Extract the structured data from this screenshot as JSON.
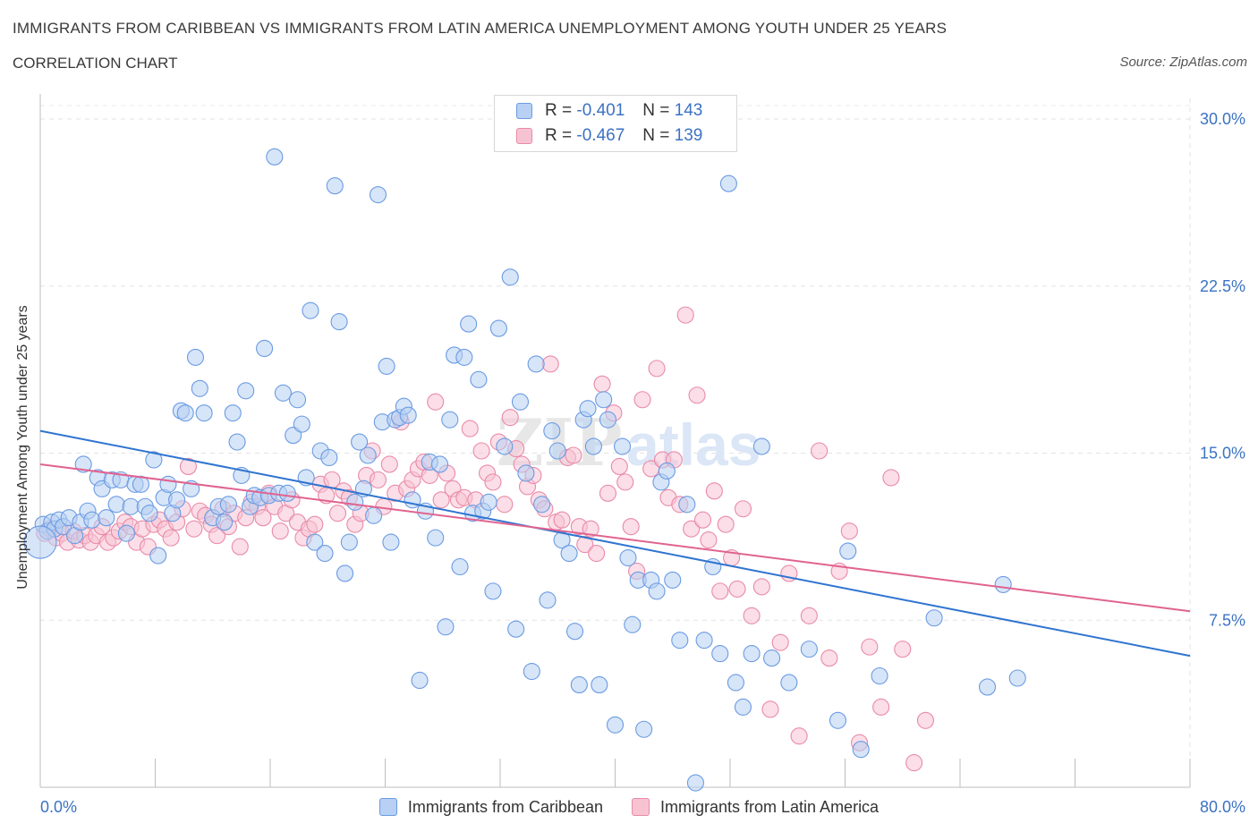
{
  "header": {
    "title": "IMMIGRANTS FROM CARIBBEAN VS IMMIGRANTS FROM LATIN AMERICA UNEMPLOYMENT AMONG YOUTH UNDER 25 YEARS",
    "subtitle": "CORRELATION CHART",
    "source": "Source: ZipAtlas.com"
  },
  "colors": {
    "blue": "#6a9be3",
    "blue_fill": "#b7d0f3",
    "blue_line": "#2f74d0",
    "pink": "#e98aa8",
    "pink_fill": "#f7c3d3",
    "pink_line": "#e06390",
    "axis_text": "#3b72c4"
  },
  "legend": {
    "r_label": "R =",
    "n_label": "N =",
    "series": [
      {
        "r": "-0.401",
        "n": "143"
      },
      {
        "r": "-0.467",
        "n": "139"
      }
    ]
  },
  "watermark": {
    "part1": "ZIP",
    "part2": "atlas"
  },
  "chart_data": {
    "type": "scatter",
    "xlabel": "",
    "ylabel": "Unemployment Among Youth under 25 years",
    "xlim": [
      0,
      80
    ],
    "ylim": [
      0,
      30
    ],
    "x_tick_labels": [
      "0.0%",
      "80.0%"
    ],
    "y_ticks": [
      7.5,
      15.0,
      22.5,
      30.0
    ],
    "y_tick_labels": [
      "7.5%",
      "15.0%",
      "22.5%",
      "30.0%"
    ],
    "grid": true,
    "legend_position": "top-center",
    "series": [
      {
        "name": "Immigrants from Caribbean",
        "trend": {
          "x": [
            0,
            80
          ],
          "y": [
            16.0,
            5.9
          ]
        },
        "points": [
          [
            0.2,
            11.8
          ],
          [
            0.5,
            11.5
          ],
          [
            0.8,
            11.9
          ],
          [
            1.0,
            11.6
          ],
          [
            1.3,
            12.0
          ],
          [
            1.6,
            11.7
          ],
          [
            2.0,
            12.1
          ],
          [
            2.4,
            11.3
          ],
          [
            2.8,
            11.9
          ],
          [
            3.0,
            14.5
          ],
          [
            3.3,
            12.4
          ],
          [
            3.6,
            12.0
          ],
          [
            4.0,
            13.9
          ],
          [
            4.3,
            13.4
          ],
          [
            4.6,
            12.1
          ],
          [
            5.0,
            13.8
          ],
          [
            5.3,
            12.7
          ],
          [
            5.6,
            13.8
          ],
          [
            6.0,
            11.4
          ],
          [
            6.3,
            12.6
          ],
          [
            6.6,
            13.6
          ],
          [
            7.0,
            13.6
          ],
          [
            7.3,
            12.6
          ],
          [
            7.6,
            12.3
          ],
          [
            7.9,
            14.7
          ],
          [
            8.2,
            10.4
          ],
          [
            8.6,
            13.0
          ],
          [
            8.9,
            13.6
          ],
          [
            9.2,
            12.3
          ],
          [
            9.5,
            12.9
          ],
          [
            9.8,
            16.9
          ],
          [
            10.1,
            16.8
          ],
          [
            10.5,
            13.4
          ],
          [
            10.8,
            19.3
          ],
          [
            11.1,
            17.9
          ],
          [
            11.4,
            16.8
          ],
          [
            12.0,
            12.1
          ],
          [
            12.4,
            12.6
          ],
          [
            12.8,
            11.9
          ],
          [
            13.1,
            12.7
          ],
          [
            13.4,
            16.8
          ],
          [
            13.7,
            15.5
          ],
          [
            14.0,
            14.0
          ],
          [
            14.3,
            17.8
          ],
          [
            14.6,
            12.6
          ],
          [
            14.9,
            13.1
          ],
          [
            15.3,
            13.0
          ],
          [
            15.6,
            19.7
          ],
          [
            15.9,
            13.1
          ],
          [
            16.3,
            28.3
          ],
          [
            16.6,
            13.2
          ],
          [
            16.9,
            17.7
          ],
          [
            17.2,
            13.2
          ],
          [
            17.6,
            15.8
          ],
          [
            17.9,
            17.4
          ],
          [
            18.2,
            16.3
          ],
          [
            18.5,
            13.9
          ],
          [
            18.8,
            21.4
          ],
          [
            19.1,
            11.0
          ],
          [
            19.5,
            15.1
          ],
          [
            19.8,
            10.5
          ],
          [
            20.1,
            14.8
          ],
          [
            20.5,
            27.0
          ],
          [
            20.8,
            20.9
          ],
          [
            21.2,
            9.6
          ],
          [
            21.5,
            11.0
          ],
          [
            21.9,
            12.8
          ],
          [
            22.2,
            15.5
          ],
          [
            22.5,
            13.4
          ],
          [
            22.8,
            14.9
          ],
          [
            23.2,
            12.2
          ],
          [
            23.5,
            26.6
          ],
          [
            23.8,
            16.4
          ],
          [
            24.1,
            18.9
          ],
          [
            24.4,
            11.0
          ],
          [
            24.7,
            16.5
          ],
          [
            25.0,
            16.6
          ],
          [
            25.3,
            17.1
          ],
          [
            25.6,
            16.7
          ],
          [
            25.9,
            12.9
          ],
          [
            26.4,
            4.8
          ],
          [
            26.8,
            12.4
          ],
          [
            27.1,
            14.6
          ],
          [
            27.5,
            11.2
          ],
          [
            27.8,
            14.5
          ],
          [
            28.2,
            7.2
          ],
          [
            28.5,
            16.5
          ],
          [
            28.8,
            19.4
          ],
          [
            29.2,
            9.9
          ],
          [
            29.5,
            19.3
          ],
          [
            29.8,
            20.8
          ],
          [
            30.1,
            12.3
          ],
          [
            30.5,
            18.3
          ],
          [
            30.8,
            12.4
          ],
          [
            31.2,
            12.8
          ],
          [
            31.5,
            8.8
          ],
          [
            31.9,
            20.6
          ],
          [
            32.3,
            15.3
          ],
          [
            32.7,
            22.9
          ],
          [
            33.1,
            7.1
          ],
          [
            33.4,
            17.3
          ],
          [
            33.8,
            14.1
          ],
          [
            34.2,
            5.2
          ],
          [
            34.5,
            19.0
          ],
          [
            34.9,
            12.7
          ],
          [
            35.3,
            8.4
          ],
          [
            35.6,
            16.0
          ],
          [
            36.0,
            15.1
          ],
          [
            36.3,
            11.1
          ],
          [
            36.8,
            10.5
          ],
          [
            37.2,
            7.0
          ],
          [
            37.5,
            4.6
          ],
          [
            37.8,
            16.5
          ],
          [
            38.1,
            17.0
          ],
          [
            38.5,
            15.3
          ],
          [
            38.9,
            4.6
          ],
          [
            39.2,
            17.4
          ],
          [
            39.5,
            16.5
          ],
          [
            40.0,
            2.8
          ],
          [
            40.5,
            15.3
          ],
          [
            40.9,
            10.3
          ],
          [
            41.2,
            7.3
          ],
          [
            41.6,
            9.3
          ],
          [
            42.0,
            2.6
          ],
          [
            42.5,
            9.3
          ],
          [
            42.9,
            8.8
          ],
          [
            43.2,
            13.7
          ],
          [
            43.6,
            14.2
          ],
          [
            44.0,
            9.3
          ],
          [
            44.5,
            6.6
          ],
          [
            45.0,
            12.7
          ],
          [
            45.6,
            0.2
          ],
          [
            46.2,
            6.6
          ],
          [
            46.8,
            9.9
          ],
          [
            47.3,
            6.0
          ],
          [
            47.9,
            27.1
          ],
          [
            48.4,
            4.7
          ],
          [
            48.9,
            3.6
          ],
          [
            49.5,
            6.0
          ],
          [
            50.2,
            15.3
          ],
          [
            50.9,
            5.8
          ],
          [
            52.1,
            4.7
          ],
          [
            53.5,
            6.2
          ],
          [
            55.5,
            3.0
          ],
          [
            56.2,
            10.6
          ],
          [
            57.1,
            1.7
          ],
          [
            58.4,
            5.0
          ],
          [
            62.2,
            7.6
          ],
          [
            65.9,
            4.5
          ],
          [
            67.0,
            9.1
          ],
          [
            68.0,
            4.9
          ],
          [
            0.0,
            11.0
          ]
        ]
      },
      {
        "name": "Immigrants from Latin America",
        "trend": {
          "x": [
            0,
            80
          ],
          "y": [
            14.5,
            7.9
          ]
        },
        "points": [
          [
            0.3,
            11.4
          ],
          [
            0.7,
            11.6
          ],
          [
            1.1,
            11.2
          ],
          [
            1.5,
            11.4
          ],
          [
            1.9,
            11.0
          ],
          [
            2.3,
            11.5
          ],
          [
            2.7,
            11.1
          ],
          [
            3.1,
            11.3
          ],
          [
            3.5,
            11.0
          ],
          [
            3.9,
            11.3
          ],
          [
            4.3,
            11.7
          ],
          [
            4.7,
            11.0
          ],
          [
            5.1,
            11.2
          ],
          [
            5.5,
            11.5
          ],
          [
            5.9,
            11.9
          ],
          [
            6.3,
            11.7
          ],
          [
            6.7,
            11.0
          ],
          [
            7.1,
            11.6
          ],
          [
            7.5,
            10.8
          ],
          [
            7.9,
            11.8
          ],
          [
            8.3,
            12.0
          ],
          [
            8.7,
            11.6
          ],
          [
            9.1,
            11.2
          ],
          [
            9.5,
            11.9
          ],
          [
            9.9,
            12.5
          ],
          [
            10.3,
            14.4
          ],
          [
            10.7,
            11.6
          ],
          [
            11.1,
            12.4
          ],
          [
            11.5,
            12.2
          ],
          [
            11.9,
            11.8
          ],
          [
            12.3,
            11.3
          ],
          [
            12.7,
            12.5
          ],
          [
            13.1,
            11.7
          ],
          [
            13.5,
            12.3
          ],
          [
            13.9,
            10.8
          ],
          [
            14.3,
            12.1
          ],
          [
            14.7,
            12.8
          ],
          [
            15.1,
            12.6
          ],
          [
            15.5,
            12.1
          ],
          [
            15.9,
            13.2
          ],
          [
            16.3,
            12.6
          ],
          [
            16.7,
            11.5
          ],
          [
            17.1,
            12.3
          ],
          [
            17.5,
            12.9
          ],
          [
            17.9,
            11.9
          ],
          [
            18.3,
            11.2
          ],
          [
            18.7,
            11.6
          ],
          [
            19.1,
            11.8
          ],
          [
            19.5,
            13.6
          ],
          [
            19.9,
            13.1
          ],
          [
            20.3,
            13.8
          ],
          [
            20.7,
            12.3
          ],
          [
            21.1,
            13.3
          ],
          [
            21.5,
            13.0
          ],
          [
            21.9,
            11.8
          ],
          [
            22.3,
            12.3
          ],
          [
            22.7,
            14.0
          ],
          [
            23.1,
            15.1
          ],
          [
            23.5,
            13.8
          ],
          [
            23.9,
            12.6
          ],
          [
            24.3,
            14.5
          ],
          [
            24.7,
            13.2
          ],
          [
            25.1,
            16.4
          ],
          [
            25.5,
            13.4
          ],
          [
            25.9,
            13.8
          ],
          [
            26.3,
            14.3
          ],
          [
            26.7,
            14.6
          ],
          [
            27.1,
            14.0
          ],
          [
            27.5,
            17.3
          ],
          [
            27.9,
            12.9
          ],
          [
            28.3,
            14.1
          ],
          [
            28.7,
            13.4
          ],
          [
            29.1,
            12.9
          ],
          [
            29.5,
            13.0
          ],
          [
            29.9,
            16.1
          ],
          [
            30.3,
            12.9
          ],
          [
            30.7,
            15.1
          ],
          [
            31.1,
            14.1
          ],
          [
            31.5,
            13.7
          ],
          [
            31.9,
            15.5
          ],
          [
            32.3,
            12.7
          ],
          [
            32.7,
            16.6
          ],
          [
            33.1,
            15.2
          ],
          [
            33.5,
            14.5
          ],
          [
            33.9,
            13.5
          ],
          [
            34.3,
            14.0
          ],
          [
            34.7,
            12.9
          ],
          [
            35.1,
            12.5
          ],
          [
            35.5,
            19.0
          ],
          [
            35.9,
            11.9
          ],
          [
            36.3,
            12.0
          ],
          [
            36.7,
            14.8
          ],
          [
            37.1,
            14.9
          ],
          [
            37.5,
            11.7
          ],
          [
            37.9,
            10.9
          ],
          [
            38.3,
            11.6
          ],
          [
            38.7,
            10.5
          ],
          [
            39.1,
            18.1
          ],
          [
            39.5,
            13.2
          ],
          [
            39.9,
            16.8
          ],
          [
            40.3,
            14.4
          ],
          [
            40.7,
            13.7
          ],
          [
            41.1,
            11.7
          ],
          [
            41.5,
            9.7
          ],
          [
            41.9,
            17.4
          ],
          [
            42.5,
            14.3
          ],
          [
            42.9,
            18.8
          ],
          [
            43.3,
            14.7
          ],
          [
            43.7,
            13.0
          ],
          [
            44.1,
            14.7
          ],
          [
            44.5,
            12.7
          ],
          [
            44.9,
            21.2
          ],
          [
            45.3,
            11.6
          ],
          [
            45.7,
            17.6
          ],
          [
            46.1,
            12.0
          ],
          [
            46.5,
            11.1
          ],
          [
            46.9,
            13.3
          ],
          [
            47.3,
            8.8
          ],
          [
            47.7,
            11.8
          ],
          [
            48.1,
            10.3
          ],
          [
            48.5,
            8.9
          ],
          [
            48.9,
            12.5
          ],
          [
            49.5,
            7.7
          ],
          [
            50.2,
            9.0
          ],
          [
            50.8,
            3.5
          ],
          [
            51.5,
            6.5
          ],
          [
            52.1,
            9.6
          ],
          [
            52.8,
            2.3
          ],
          [
            53.5,
            7.7
          ],
          [
            54.2,
            15.1
          ],
          [
            54.9,
            5.8
          ],
          [
            55.6,
            9.7
          ],
          [
            56.3,
            11.5
          ],
          [
            57.0,
            2.0
          ],
          [
            57.7,
            6.3
          ],
          [
            58.5,
            3.6
          ],
          [
            59.2,
            13.9
          ],
          [
            60.0,
            6.2
          ],
          [
            60.8,
            1.1
          ],
          [
            61.6,
            3.0
          ]
        ]
      }
    ]
  },
  "bottom_legend": [
    {
      "label": "Immigrants from Caribbean"
    },
    {
      "label": "Immigrants from Latin America"
    }
  ]
}
